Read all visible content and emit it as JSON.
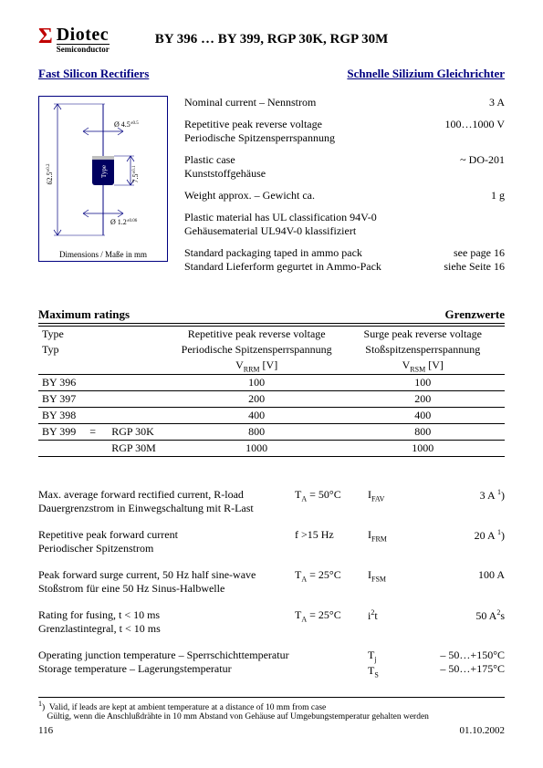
{
  "logo": {
    "name": "Diotec",
    "sub": "Semiconductor"
  },
  "title": "BY 396 … BY 399, RGP 30K, RGP 30M",
  "section_left": "Fast Silicon Rectifiers",
  "section_right": "Schnelle Silizium Gleichrichter",
  "diagram": {
    "d1": "Ø 4.5",
    "d1_tol": "±0.5",
    "d2": "Ø 1.2",
    "d2_tol": "±0.06",
    "len": "62.5",
    "len_tol": "±0.2",
    "body": "7.5",
    "body_tol": "±0.1",
    "type_label": "Type",
    "caption": "Dimensions / Maße in mm"
  },
  "specs": [
    {
      "en": "Nominal current – Nennstrom",
      "de": "",
      "value": "3 A"
    },
    {
      "en": "Repetitive peak reverse voltage",
      "de": "Periodische Spitzensperrspannung",
      "value": "100…1000 V"
    },
    {
      "en": "Plastic case",
      "de": "Kunststoffgehäuse",
      "value": "~ DO-201"
    },
    {
      "en": "Weight approx. – Gewicht ca.",
      "de": "",
      "value": "1 g"
    },
    {
      "en": "Plastic material has UL classification 94V-0",
      "de": "Gehäusematerial UL94V-0 klassifiziert",
      "value": ""
    },
    {
      "en": "Standard packaging taped in ammo pack",
      "de": "Standard Lieferform gegurtet in Ammo-Pack",
      "value": "see page 16\nsiehe Seite 16"
    }
  ],
  "table": {
    "head_left": "Maximum ratings",
    "head_right": "Grenzwerte",
    "col_type_en": "Type",
    "col_type_de": "Typ",
    "col_vrrm_en": "Repetitive peak reverse voltage",
    "col_vrrm_de": "Periodische Spitzensperrspannung",
    "col_vrrm_sym": "V",
    "col_vrrm_sub": "RRM",
    "col_vrsm_en": "Surge peak reverse voltage",
    "col_vrsm_de": "Stoßspitzensperrspannung",
    "col_vrsm_sym": "V",
    "col_vrsm_sub": "RSM",
    "unit": "[V]",
    "rows": [
      {
        "type": "BY 396",
        "alias": "",
        "vrrm": "100",
        "vrsm": "100"
      },
      {
        "type": "BY 397",
        "alias": "",
        "vrrm": "200",
        "vrsm": "200"
      },
      {
        "type": "BY 398",
        "alias": "",
        "vrrm": "400",
        "vrsm": "400"
      },
      {
        "type": "BY 399     =",
        "alias": "RGP 30K",
        "vrrm": "800",
        "vrsm": "800"
      },
      {
        "type": "",
        "alias": "RGP 30M",
        "vrrm": "1000",
        "vrsm": "1000"
      }
    ]
  },
  "params": [
    {
      "en": "Max. average forward rectified current, R-load",
      "de": "Dauergrenzstrom in Einwegschaltung mit R-Last",
      "cond": "T<sub>A</sub> = 50°C",
      "sym": "I<sub>FAV</sub>",
      "val": "3 A <sup>1</sup>)"
    },
    {
      "en": "Repetitive peak forward current",
      "de": "Periodischer Spitzenstrom",
      "cond": "f >15 Hz",
      "sym": "I<sub>FRM</sub>",
      "val": "20 A <sup>1</sup>)"
    },
    {
      "en": "Peak forward surge current, 50 Hz half sine-wave",
      "de": "Stoßstrom für eine 50 Hz Sinus-Halbwelle",
      "cond": "T<sub>A</sub> = 25°C",
      "sym": "I<sub>FSM</sub>",
      "val": "100 A"
    },
    {
      "en": "Rating for fusing, t < 10 ms",
      "de": "Grenzlastintegral, t < 10 ms",
      "cond": "T<sub>A</sub> = 25°C",
      "sym": "i<sup>2</sup>t",
      "val": "50 A<sup>2</sup>s"
    },
    {
      "en": "Operating junction temperature – Sperrschichttemperatur",
      "de": "Storage temperature – Lagerungstemperatur",
      "cond": "",
      "sym": "T<sub>j</sub><br>T<sub>S</sub>",
      "val": "– 50…+150°C<br>– 50…+175°C"
    }
  ],
  "footnote": {
    "mark": "1",
    "en": "Valid, if leads are kept at ambient temperature at a distance of 10 mm from case",
    "de": "Gültig, wenn die Anschlußdrähte in 10 mm Abstand von Gehäuse auf Umgebungstemperatur gehalten werden"
  },
  "page_num": "116",
  "date": "01.10.2002"
}
